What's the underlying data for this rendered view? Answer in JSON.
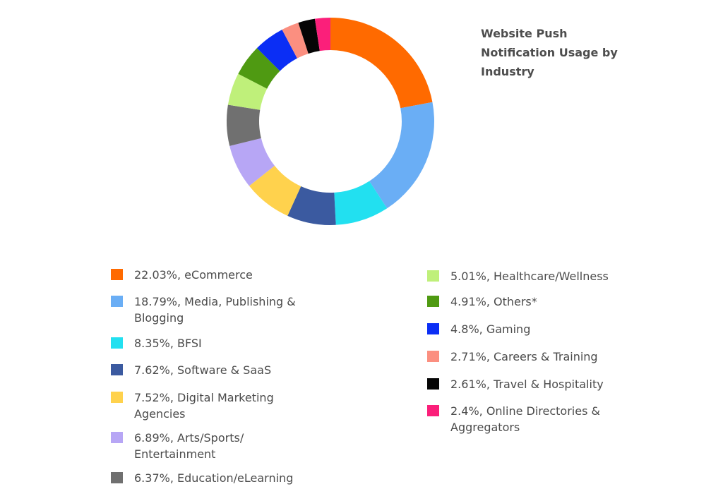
{
  "chart_data": {
    "type": "pie",
    "donut": true,
    "title": "Website Push Notification Usage by Industry",
    "slices": [
      {
        "label": "22.03%, eCommerce",
        "value": 22.03,
        "color": "#ff6a00"
      },
      {
        "label": "18.79%, Media, Publishing &\nBlogging",
        "value": 18.79,
        "color": "#6aaef5"
      },
      {
        "label": "8.35%, BFSI",
        "value": 8.35,
        "color": "#22e0f0"
      },
      {
        "label": "7.62%, Software & SaaS",
        "value": 7.62,
        "color": "#3b5aa0"
      },
      {
        "label": "7.52%, Digital Marketing\nAgencies",
        "value": 7.52,
        "color": "#ffd24d"
      },
      {
        "label": "6.89%, Arts/Sports/\nEntertainment",
        "value": 6.89,
        "color": "#b7a6f5"
      },
      {
        "label": "6.37%, Education/eLearning",
        "value": 6.37,
        "color": "#707070"
      },
      {
        "label": "5.01%, Healthcare/Wellness",
        "value": 5.01,
        "color": "#bff07a"
      },
      {
        "label": "4.91%, Others*",
        "value": 4.91,
        "color": "#4f9a12"
      },
      {
        "label": "4.8%, Gaming",
        "value": 4.8,
        "color": "#0b2ef5"
      },
      {
        "label": "2.71%, Careers & Training",
        "value": 2.71,
        "color": "#fb8f80"
      },
      {
        "label": "2.61%, Travel & Hospitality",
        "value": 2.61,
        "color": "#050505"
      },
      {
        "label": "2.4%, Online Directories &\nAggregators",
        "value": 2.4,
        "color": "#fb1f7a"
      }
    ],
    "legend_placement": "bottom, two columns"
  }
}
